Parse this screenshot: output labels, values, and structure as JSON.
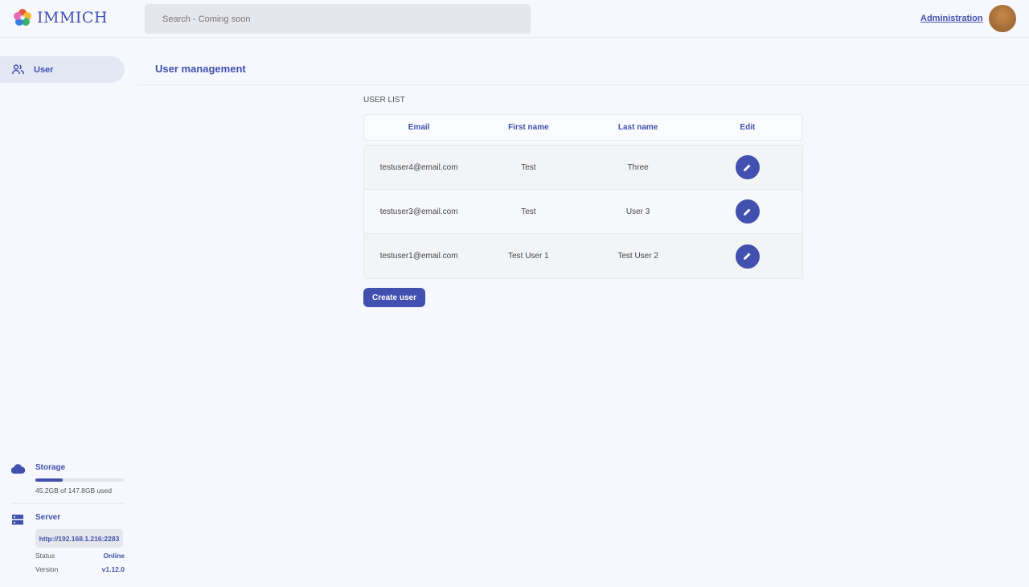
{
  "header": {
    "app_name": "IMMICH",
    "search_placeholder": "Search - Coming soon",
    "admin_link": "Administration"
  },
  "sidebar": {
    "items": [
      {
        "label": "User",
        "icon": "users-icon",
        "active": true
      }
    ],
    "storage": {
      "title": "Storage",
      "used_text": "45.2GB of 147.8GB used",
      "used_fraction": 0.306
    },
    "server": {
      "title": "Server",
      "url": "http://192.168.1.216:2283",
      "status_label": "Status",
      "status": "Online",
      "version_label": "Version",
      "version": "v1.12.0"
    }
  },
  "main": {
    "title": "User management",
    "list_label": "USER LIST",
    "columns": [
      "Email",
      "First name",
      "Last name",
      "Edit"
    ],
    "rows": [
      {
        "email": "testuser4@email.com",
        "first": "Test",
        "last": "Three"
      },
      {
        "email": "testuser3@email.com",
        "first": "Test",
        "last": "User 3"
      },
      {
        "email": "testuser1@email.com",
        "first": "Test User 1",
        "last": "Test User 2"
      }
    ],
    "create_button": "Create user"
  },
  "colors": {
    "accent": "#4250af",
    "background": "#f6f8fd"
  }
}
